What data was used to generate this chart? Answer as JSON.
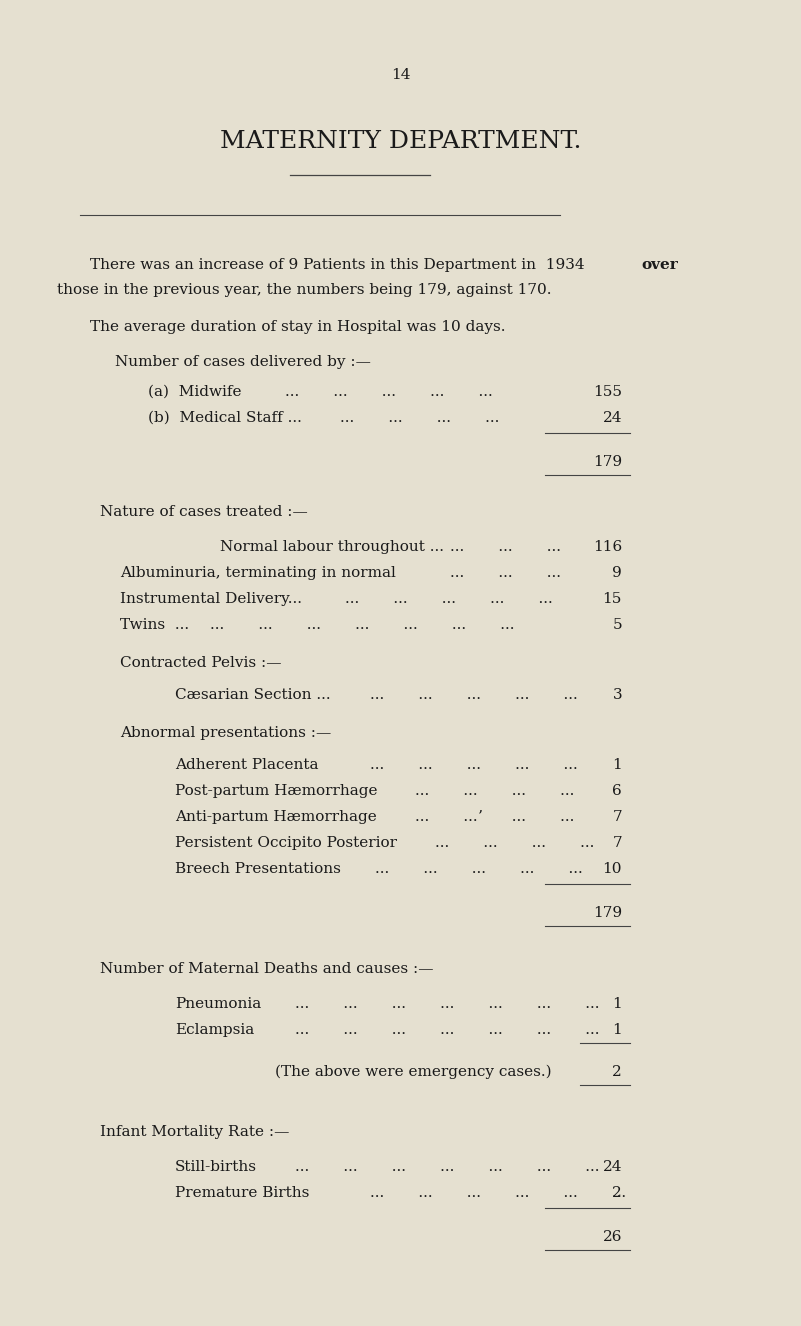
{
  "page_number": "14",
  "title": "MATERNITY DEPARTMENT.",
  "bg_color": "#e5e0d0",
  "text_color": "#1a1a1a",
  "page_number_fontsize": 11,
  "title_fontsize": 18,
  "body_fontsize": 11,
  "figwidth": 8.01,
  "figheight": 13.26,
  "dpi": 100
}
